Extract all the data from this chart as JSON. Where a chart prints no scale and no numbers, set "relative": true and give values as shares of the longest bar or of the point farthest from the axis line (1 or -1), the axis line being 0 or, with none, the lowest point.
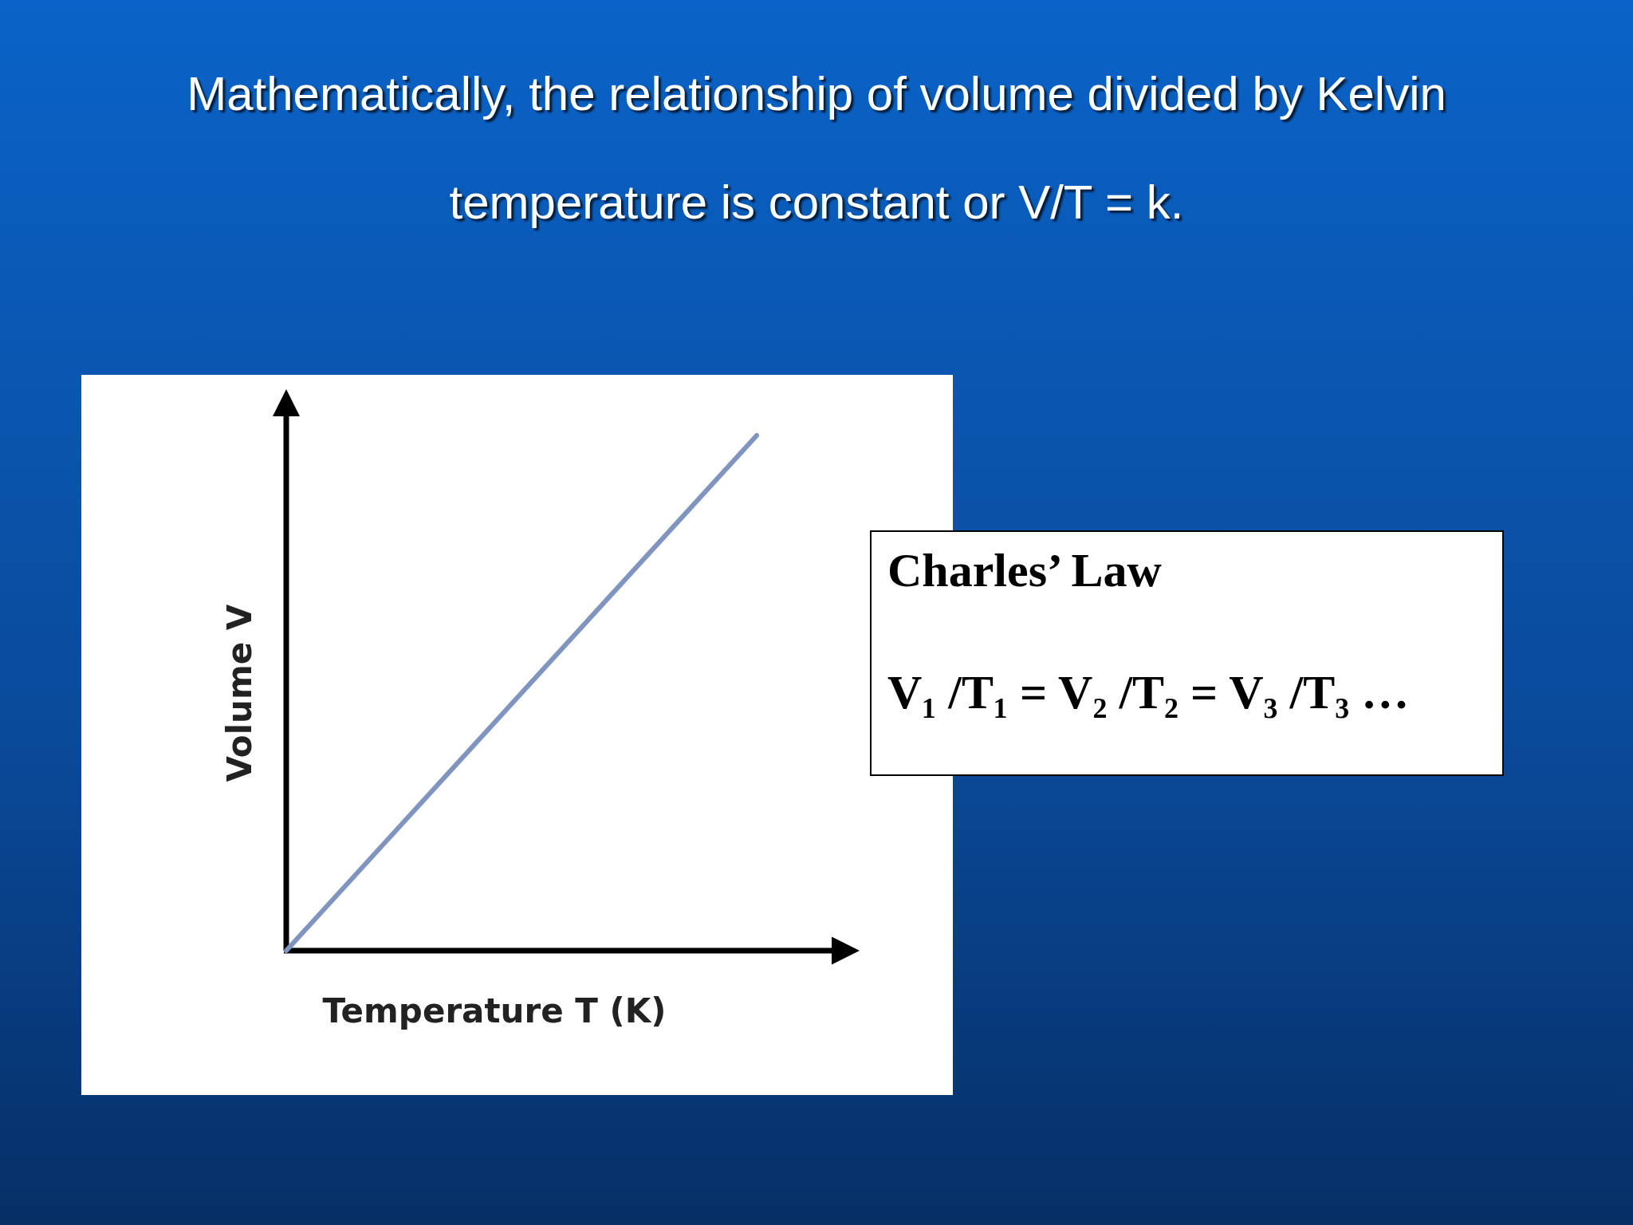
{
  "chart_data": [
    {
      "type": "line",
      "title": "Mathematically, the relationship of volume divided by Kelvin temperature is constant or V/T = k.",
      "xlabel": "Temperature T (K)",
      "ylabel": "Volume V",
      "relative": true,
      "categories": [
        null,
        null
      ],
      "series": [
        {
          "color": "#8094c0",
          "values": [
            0,
            1
          ]
        }
      ]
    },
    {
      "type": "other",
      "title": "Charles’ Law",
      "annotations": [
        "V₁ /T₁  = V₂ /T₂ = V₃ /T₃ …"
      ]
    }
  ]
}
